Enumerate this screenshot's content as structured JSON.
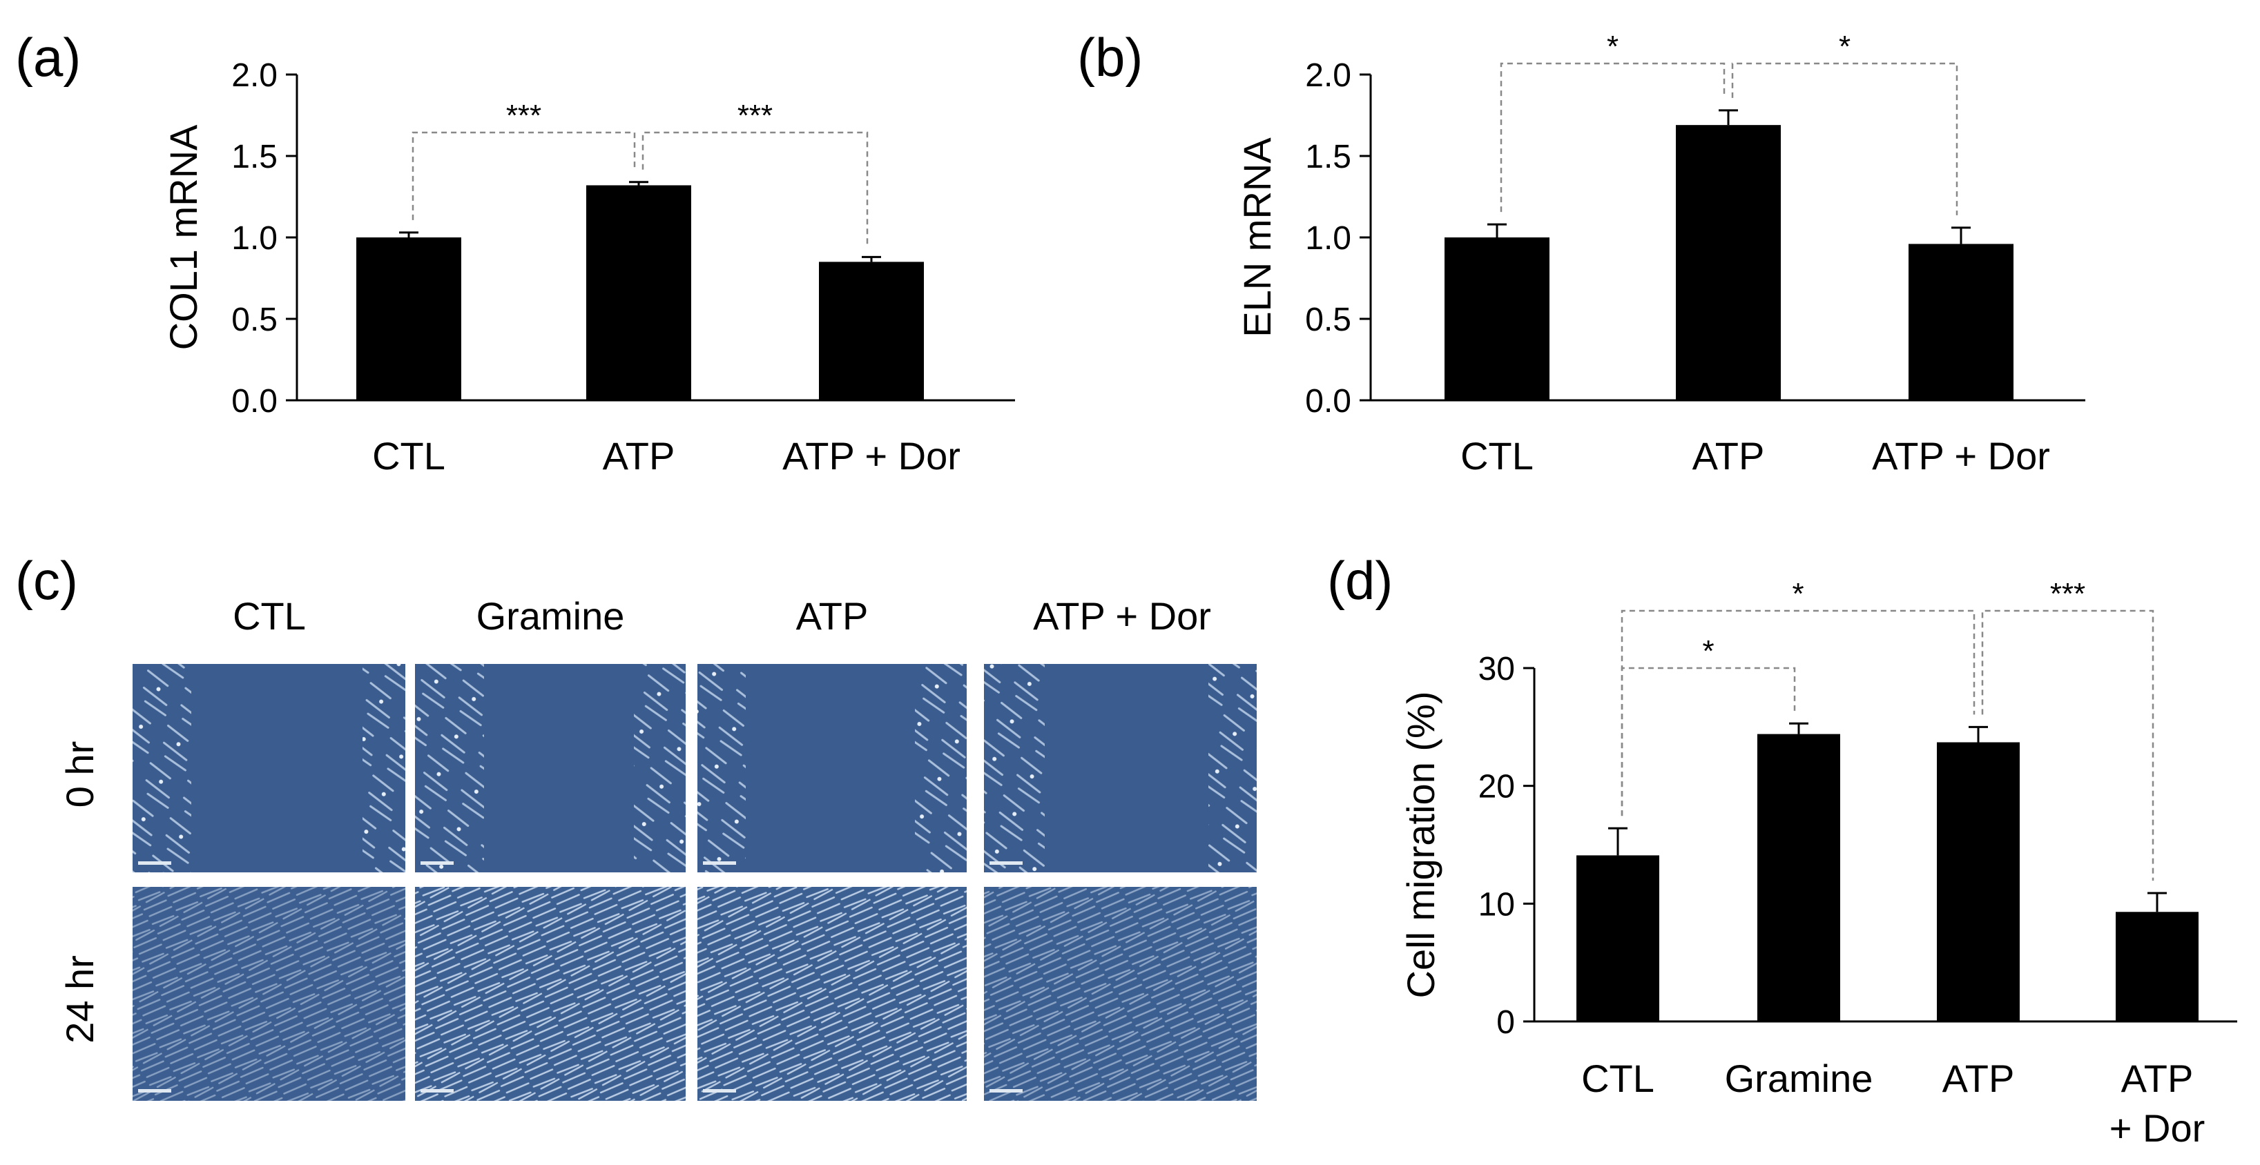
{
  "panels": [
    {
      "id": "a",
      "label": "(a)"
    },
    {
      "id": "b",
      "label": "(b)"
    },
    {
      "id": "c",
      "label": "(c)"
    },
    {
      "id": "d",
      "label": "(d)"
    }
  ],
  "chart_data": [
    {
      "panel": "a",
      "type": "bar",
      "ylabel": "COL1 mRNA",
      "categories": [
        "CTL",
        "ATP",
        "ATP + Dor"
      ],
      "values": [
        1.0,
        1.32,
        0.85
      ],
      "errors": [
        0.03,
        0.02,
        0.03
      ],
      "ylim": [
        0,
        2.0
      ],
      "yticks": [
        "0.0",
        "0.5",
        "1.0",
        "1.5",
        "2.0"
      ],
      "significance": [
        {
          "from": 0,
          "to": 1,
          "label": "***"
        },
        {
          "from": 1,
          "to": 2,
          "label": "***"
        }
      ]
    },
    {
      "panel": "b",
      "type": "bar",
      "ylabel": "ELN mRNA",
      "categories": [
        "CTL",
        "ATP",
        "ATP + Dor"
      ],
      "values": [
        1.0,
        1.69,
        0.96
      ],
      "errors": [
        0.08,
        0.09,
        0.1
      ],
      "ylim": [
        0,
        2.0
      ],
      "yticks": [
        "0.0",
        "0.5",
        "1.0",
        "1.5",
        "2.0"
      ],
      "significance": [
        {
          "from": 0,
          "to": 1,
          "label": "*"
        },
        {
          "from": 1,
          "to": 2,
          "label": "*"
        }
      ]
    },
    {
      "panel": "d",
      "type": "bar",
      "ylabel": "Cell migration (%)",
      "categories": [
        "CTL",
        "Gramine",
        "ATP",
        "ATP\n+ Dor"
      ],
      "values": [
        14.1,
        24.4,
        23.7,
        9.3
      ],
      "errors": [
        2.3,
        0.9,
        1.3,
        1.6
      ],
      "ylim": [
        0,
        30
      ],
      "yticks": [
        "0",
        "10",
        "20",
        "30"
      ],
      "significance": [
        {
          "from": 0,
          "to": 1,
          "label": "*"
        },
        {
          "from": 0,
          "to": 2,
          "label": "*"
        },
        {
          "from": 2,
          "to": 3,
          "label": "***"
        }
      ]
    }
  ],
  "micrographs": {
    "columns": [
      "CTL",
      "Gramine",
      "ATP",
      "ATP + Dor"
    ],
    "rows": [
      "0 hr",
      "24 hr"
    ],
    "colors": {
      "background": "#3a5c8e",
      "cells": "#b8cbe3"
    }
  }
}
